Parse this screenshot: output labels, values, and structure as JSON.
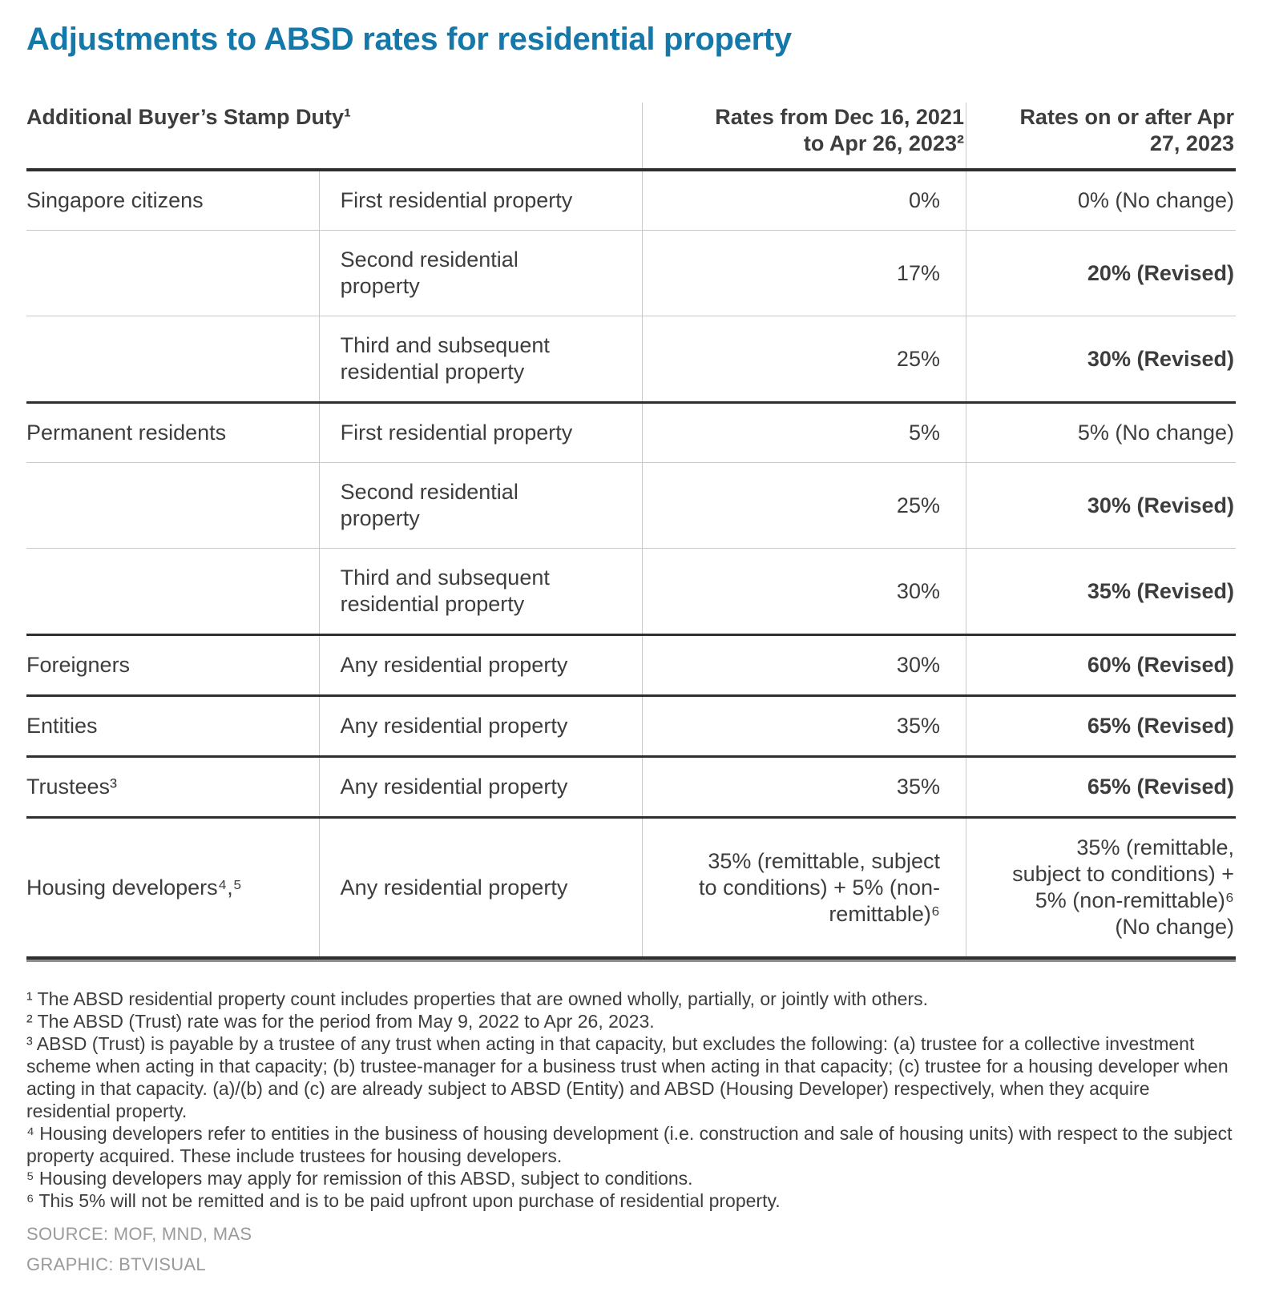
{
  "page": {
    "title": "Adjustments to ABSD rates for residential property",
    "source_line": "SOURCE: MOF, MND, MAS",
    "graphic_line": "GRAPHIC: BTVISUAL"
  },
  "colors": {
    "title_blue": "#1478ab",
    "text_dark": "#3d3d3d",
    "border_dark": "#2e2e2e",
    "border_light": "#c9c9c9",
    "border_shadow_gray": "#8e8e8e",
    "credits_gray": "#9a9a9a"
  },
  "chart_data": {
    "type": "table",
    "title": "Adjustments to ABSD rates for residential property",
    "header": {
      "left_label": "Additional Buyer’s Stamp Duty¹",
      "col_rates_old": "Rates from Dec 16, 2021\nto Apr 26, 2023²",
      "col_rates_new": "Rates on or after Apr\n27, 2023"
    },
    "rows": [
      {
        "group": "Singapore citizens",
        "property": "First residential property",
        "rate_old": "0%",
        "rate_new": "0% (No change)",
        "revised": false
      },
      {
        "group": "",
        "property": "Second residential\nproperty",
        "rate_old": "17%",
        "rate_new": "20% (Revised)",
        "revised": true
      },
      {
        "group": "",
        "property": "Third and subsequent\nresidential property",
        "rate_old": "25%",
        "rate_new": "30% (Revised)",
        "revised": true
      },
      {
        "group": "Permanent residents",
        "property": "First residential property",
        "rate_old": "5%",
        "rate_new": "5% (No change)",
        "revised": false
      },
      {
        "group": "",
        "property": "Second residential\nproperty",
        "rate_old": "25%",
        "rate_new": "30% (Revised)",
        "revised": true
      },
      {
        "group": "",
        "property": "Third and subsequent\nresidential property",
        "rate_old": "30%",
        "rate_new": "35% (Revised)",
        "revised": true
      },
      {
        "group": "Foreigners",
        "property": "Any residential property",
        "rate_old": "30%",
        "rate_new": "60% (Revised)",
        "revised": true
      },
      {
        "group": "Entities",
        "property": "Any residential property",
        "rate_old": "35%",
        "rate_new": "65% (Revised)",
        "revised": true
      },
      {
        "group": "Trustees³",
        "property": "Any residential property",
        "rate_old": "35%",
        "rate_new": "65% (Revised)",
        "revised": true
      },
      {
        "group": "Housing developers⁴,⁵",
        "property": "Any residential property",
        "rate_old": "35% (remittable, subject\nto conditions) + 5% (non-\nremittable)⁶",
        "rate_new": "35% (remittable,\nsubject to conditions) +\n5% (non-remittable)⁶\n(No change)",
        "revised": false
      }
    ],
    "footnotes": [
      "¹ The ABSD residential property count includes properties that are owned wholly, partially, or jointly with others.",
      "² The ABSD (Trust) rate was for the period from May 9, 2022 to Apr 26, 2023.",
      "³ ABSD (Trust) is payable by a trustee of any trust when acting in that capacity, but excludes the following: (a) trustee for a collective investment scheme when acting in that capacity; (b) trustee-manager for a business trust when acting in that capacity; (c) trustee for a housing developer when acting in that capacity. (a)/(b) and (c) are already subject to ABSD (Entity) and ABSD (Housing Developer) respectively, when they acquire residential property.",
      "⁴ Housing developers refer to entities in the business of housing development (i.e. construction and sale of housing units) with respect to the subject property acquired. These include trustees for housing developers.",
      "⁵ Housing developers may apply for remission of this ABSD, subject to conditions.",
      "⁶ This 5% will not be remitted and is to be paid upfront upon purchase of residential property."
    ]
  }
}
